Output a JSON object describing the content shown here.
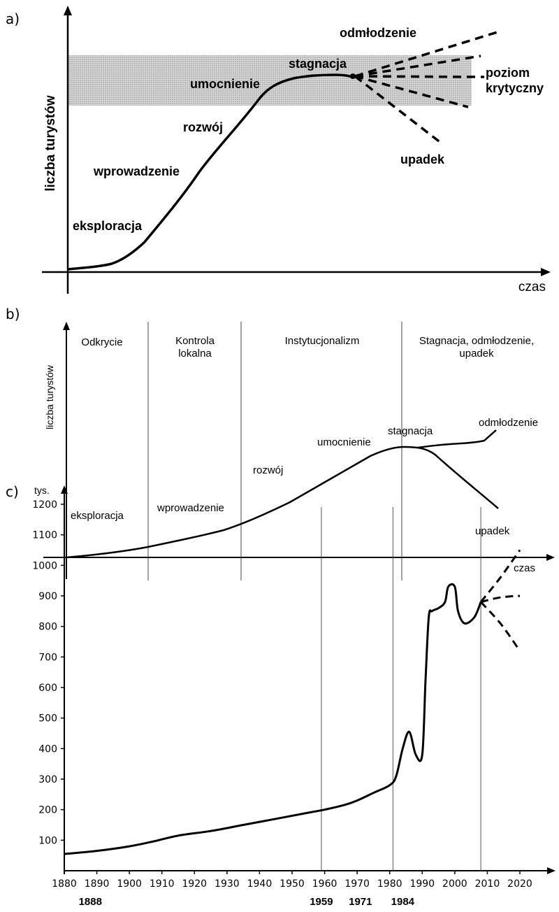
{
  "chart_data": [
    {
      "panel_label": "a)",
      "type": "line",
      "ylabel": "liczba turystów",
      "xlabel": "czas",
      "band_label": "poziom\nkrytyczny",
      "stages": [
        {
          "name": "eksploracja"
        },
        {
          "name": "wprowadzenie"
        },
        {
          "name": "rozwój"
        },
        {
          "name": "umocnienie"
        },
        {
          "name": "stagnacja"
        },
        {
          "name": "odmłodzenie"
        },
        {
          "name": "upadek"
        }
      ]
    },
    {
      "panel_label": "b)",
      "type": "line",
      "ylabel": "liczba turystów",
      "xlabel": "czas",
      "phases": [
        {
          "name": "Odkrycie"
        },
        {
          "name": "Kontrola\nlokalna"
        },
        {
          "name": "Instytucjonalizm"
        },
        {
          "name": "Stagnacja, odmłodzenie,\nupadek"
        }
      ],
      "stages": [
        {
          "name": "eksploracja"
        },
        {
          "name": "wprowadzenie"
        },
        {
          "name": "rozwój"
        },
        {
          "name": "umocnienie"
        },
        {
          "name": "stagnacja"
        },
        {
          "name": "odmłodzenie"
        },
        {
          "name": "upadek"
        }
      ]
    },
    {
      "panel_label": "c)",
      "type": "line",
      "yunit": "tys.",
      "xlim": [
        1880,
        2025
      ],
      "ylim": [
        0,
        1250
      ],
      "x_ticks": [
        1880,
        1890,
        1900,
        1910,
        1920,
        1930,
        1940,
        1950,
        1960,
        1970,
        1980,
        1990,
        2000,
        2010,
        2020
      ],
      "y_ticks": [
        100,
        200,
        300,
        400,
        500,
        600,
        700,
        800,
        900,
        1000,
        1100,
        1200
      ],
      "marked_years": [
        {
          "label": "1888",
          "x": 1888
        },
        {
          "label": "1959",
          "x": 1959
        },
        {
          "label": "1971",
          "x": 1971
        },
        {
          "label": "1984",
          "x": 1984
        }
      ],
      "vertical_lines": [
        1959,
        1981,
        2008
      ],
      "series": [
        {
          "style": "solid",
          "x": [
            1880,
            1890,
            1900,
            1907,
            1915,
            1925,
            1935,
            1945,
            1955,
            1960,
            1966,
            1970,
            1975,
            1980,
            1982,
            1984,
            1986,
            1988,
            1990,
            1991,
            1992,
            1993,
            1995,
            1997,
            1998,
            2000,
            2001,
            2003,
            2006,
            2008
          ],
          "y": [
            55,
            65,
            80,
            95,
            115,
            130,
            150,
            170,
            190,
            200,
            215,
            230,
            255,
            280,
            310,
            400,
            455,
            380,
            380,
            620,
            830,
            850,
            860,
            880,
            930,
            930,
            850,
            810,
            830,
            880
          ]
        },
        {
          "style": "dashed",
          "name": "",
          "x": [
            2008,
            2014,
            2020
          ],
          "y": [
            880,
            960,
            1050
          ]
        },
        {
          "style": "dashed",
          "name": "",
          "x": [
            2008,
            2014,
            2020
          ],
          "y": [
            880,
            895,
            900
          ]
        },
        {
          "style": "dashed",
          "name": "",
          "x": [
            2008,
            2014,
            2020
          ],
          "y": [
            880,
            810,
            720
          ]
        }
      ]
    }
  ]
}
